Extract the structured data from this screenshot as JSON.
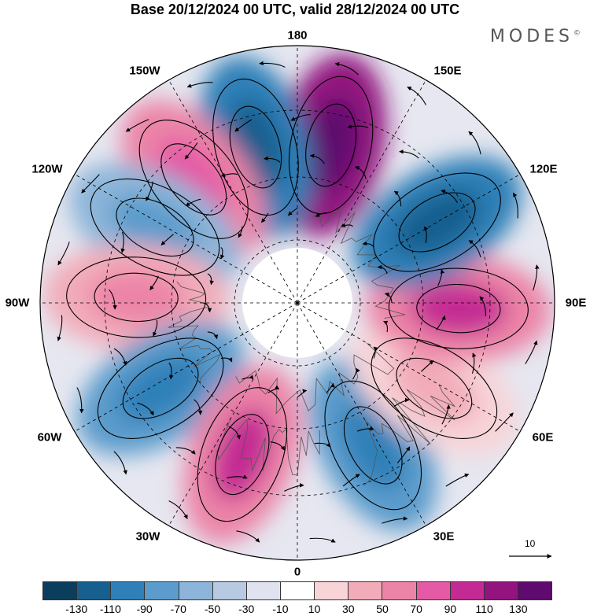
{
  "title": "Base 20/12/2024 00 UTC, valid 28/12/2024 00 UTC",
  "brand": {
    "name": "MODES",
    "mark": "©"
  },
  "longitude_labels": {
    "l180": "180",
    "l150e": "150E",
    "l120e": "120E",
    "l90e": "90E",
    "l60e": "60E",
    "l30e": "30E",
    "l0": "0",
    "l30w": "30W",
    "l60w": "60W",
    "l90w": "90W",
    "l120w": "120W",
    "l150w": "150W"
  },
  "vector_scale": {
    "value": "10"
  },
  "colorbar": {
    "colors": [
      "#0b3d5c",
      "#165f8f",
      "#2f80b8",
      "#5b9ccc",
      "#8cb5d9",
      "#b8c9e2",
      "#e0e3ef",
      "#ffffff",
      "#f7d4d8",
      "#f2acb9",
      "#ec84a7",
      "#e45aa5",
      "#c42a93",
      "#93137f",
      "#5e0a6e"
    ],
    "tick_labels": [
      "-130",
      "-110",
      "-90",
      "-70",
      "-50",
      "-30",
      "-10",
      "10",
      "30",
      "50",
      "70",
      "90",
      "110",
      "130"
    ]
  },
  "anomaly_lobes": [
    {
      "lon": 168,
      "color": "#93137f",
      "inner": "#5e0a6e"
    },
    {
      "lon": -165,
      "color": "#2f80b8",
      "inner": "#165f8f"
    },
    {
      "lon": -140,
      "color": "#ec84a7",
      "inner": "#e45aa5"
    },
    {
      "lon": -118,
      "color": "#8cb5d9",
      "inner": "#5b9ccc"
    },
    {
      "lon": -92,
      "color": "#f2acb9",
      "inner": "#ec84a7"
    },
    {
      "lon": -58,
      "color": "#5b9ccc",
      "inner": "#2f80b8"
    },
    {
      "lon": -20,
      "color": "#ec84a7",
      "inner": "#c42a93"
    },
    {
      "lon": 28,
      "color": "#5b9ccc",
      "inner": "#2f80b8"
    },
    {
      "lon": 58,
      "color": "#f7d4d8",
      "inner": "#f2acb9"
    },
    {
      "lon": 88,
      "color": "#ec84a7",
      "inner": "#c42a93"
    },
    {
      "lon": 120,
      "color": "#2f80b8",
      "inner": "#165f8f"
    }
  ]
}
